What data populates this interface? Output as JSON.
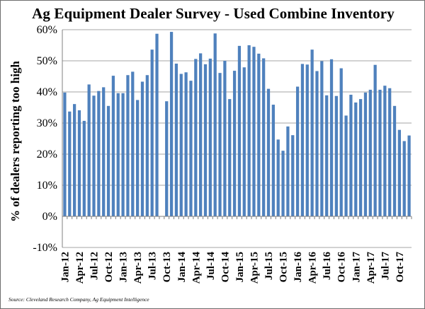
{
  "title": "Ag Equipment Dealer Survey - Used Combine Inventory",
  "source": "Source: Cleveland Research Company, Ag Equipment Intelligence",
  "colors": {
    "bar": "#4f81bd",
    "grid": "#a6a6a6",
    "axis": "#808080"
  },
  "chart_data": {
    "type": "bar",
    "title": "Ag Equipment Dealer Survey - Used Combine Inventory",
    "xlabel": "",
    "ylabel": "% of dealers reporting too high",
    "ylim": [
      -10,
      60
    ],
    "yticks": [
      -10,
      0,
      10,
      20,
      30,
      40,
      50,
      60
    ],
    "ytick_labels": [
      "-10%",
      "0%",
      "10%",
      "20%",
      "30%",
      "40%",
      "50%",
      "60%"
    ],
    "grid": true,
    "categories": [
      "Jan-12",
      "Feb-12",
      "Mar-12",
      "Apr-12",
      "May-12",
      "Jun-12",
      "Jul-12",
      "Aug-12",
      "Sep-12",
      "Oct-12",
      "Nov-12",
      "Dec-12",
      "Jan-13",
      "Feb-13",
      "Mar-13",
      "Apr-13",
      "May-13",
      "Jun-13",
      "Jul-13",
      "Aug-13",
      "Sep-13",
      "Oct-13",
      "Nov-13",
      "Dec-13",
      "Jan-14",
      "Feb-14",
      "Mar-14",
      "Apr-14",
      "May-14",
      "Jun-14",
      "Jul-14",
      "Aug-14",
      "Sep-14",
      "Oct-14",
      "Nov-14",
      "Dec-14",
      "Jan-15",
      "Feb-15",
      "Mar-15",
      "Apr-15",
      "May-15",
      "Jun-15",
      "Jul-15",
      "Aug-15",
      "Sep-15",
      "Oct-15",
      "Nov-15",
      "Dec-15",
      "Jan-16",
      "Feb-16",
      "Mar-16",
      "Apr-16",
      "May-16",
      "Jun-16",
      "Jul-16",
      "Aug-16",
      "Sep-16",
      "Oct-16",
      "Nov-16",
      "Dec-16",
      "Jan-17",
      "Feb-17",
      "Mar-17",
      "Apr-17",
      "May-17",
      "Jun-17",
      "Jul-17",
      "Aug-17",
      "Sep-17",
      "Oct-17",
      "Nov-17",
      "Dec-17"
    ],
    "values": [
      39.8,
      33.7,
      36.1,
      34.1,
      30.7,
      42.4,
      38.8,
      40.3,
      41.5,
      35.5,
      45.2,
      39.6,
      39.6,
      45.4,
      46.5,
      37.4,
      43.3,
      45.4,
      53.6,
      58.7,
      null,
      37.0,
      59.3,
      49.1,
      45.8,
      46.3,
      43.6,
      50.6,
      52.4,
      48.9,
      50.7,
      58.8,
      46.1,
      50.0,
      37.7,
      46.8,
      54.8,
      47.9,
      55.0,
      54.5,
      52.3,
      50.8,
      41.0,
      35.9,
      24.7,
      21.1,
      28.9,
      26.1,
      41.7,
      49.0,
      48.8,
      53.6,
      46.7,
      49.9,
      38.9,
      50.5,
      38.7,
      47.6,
      32.4,
      39.1,
      36.6,
      37.7,
      39.8,
      40.7,
      48.7,
      40.7,
      42.0,
      41.2,
      35.5,
      27.8,
      24.2,
      26.0
    ],
    "tick_labels": [
      "Jan-12",
      "Apr-12",
      "Jul-12",
      "Oct-12",
      "Jan-13",
      "Apr-13",
      "Jul-13",
      "Oct-13",
      "Jan-14",
      "Apr-14",
      "Jul-14",
      "Oct-14",
      "Jan-15",
      "Apr-15",
      "Jul-15",
      "Oct-15",
      "Jan-16",
      "Apr-16",
      "Jul-16",
      "Oct-16",
      "Jan-17",
      "Apr-17",
      "Jul-17",
      "Oct-17"
    ]
  }
}
